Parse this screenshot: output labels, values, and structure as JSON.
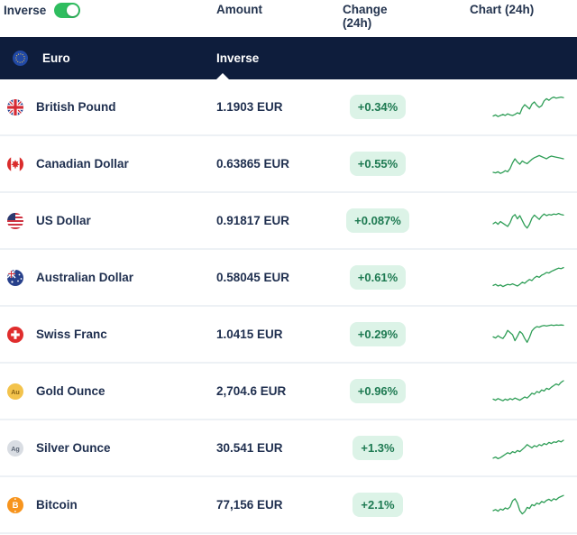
{
  "header": {
    "inverse_label": "Inverse",
    "toggle_on": true,
    "columns": {
      "amount": "Amount",
      "change": "Change (24h)",
      "chart": "Chart (24h)"
    }
  },
  "base": {
    "currency": "Euro",
    "amount_label": "Inverse"
  },
  "colors": {
    "band_navy": "#0e1d3c",
    "text_navy": "#1f2f4f",
    "badge_bg": "#dcf3e7",
    "badge_text": "#1e7a52",
    "toggle_green": "#2fbd5f",
    "spark_line": "#2f9e57",
    "separator": "#edf1f5"
  },
  "rows": [
    {
      "name": "British Pound",
      "flag": "gb-flag-icon",
      "amount": "1.1903 EUR",
      "change": "+0.34%",
      "spark": [
        18,
        22,
        16,
        20,
        24,
        20,
        26,
        22,
        20,
        24,
        30,
        26,
        48,
        60,
        52,
        44,
        62,
        70,
        58,
        50,
        56,
        74,
        82,
        76,
        84,
        88,
        84,
        86,
        88,
        86
      ]
    },
    {
      "name": "Canadian Dollar",
      "flag": "ca-flag-icon",
      "amount": "0.63865 EUR",
      "change": "+0.55%",
      "spark": [
        20,
        18,
        22,
        16,
        20,
        26,
        22,
        34,
        55,
        70,
        58,
        50,
        62,
        56,
        52,
        60,
        68,
        74,
        78,
        82,
        78,
        74,
        70,
        76,
        80,
        78,
        76,
        74,
        72,
        70
      ]
    },
    {
      "name": "US Dollar",
      "flag": "us-flag-icon",
      "amount": "0.91817 EUR",
      "change": "+0.087%",
      "spark": [
        40,
        46,
        38,
        48,
        42,
        36,
        30,
        44,
        66,
        74,
        58,
        70,
        52,
        34,
        24,
        38,
        60,
        72,
        64,
        56,
        68,
        76,
        70,
        74,
        72,
        76,
        74,
        78,
        74,
        72
      ]
    },
    {
      "name": "Australian Dollar",
      "flag": "au-flag-icon",
      "amount": "0.58045 EUR",
      "change": "+0.61%",
      "spark": [
        22,
        26,
        20,
        24,
        18,
        22,
        26,
        24,
        28,
        24,
        20,
        26,
        34,
        30,
        38,
        44,
        40,
        50,
        56,
        52,
        60,
        64,
        70,
        68,
        74,
        78,
        82,
        86,
        84,
        88
      ]
    },
    {
      "name": "Swiss Franc",
      "flag": "ch-flag-icon",
      "amount": "1.0415 EUR",
      "change": "+0.29%",
      "spark": [
        42,
        38,
        46,
        40,
        36,
        48,
        66,
        58,
        50,
        28,
        44,
        62,
        54,
        36,
        22,
        40,
        64,
        74,
        80,
        78,
        82,
        84,
        82,
        84,
        86,
        84,
        86,
        85,
        86,
        85
      ]
    },
    {
      "name": "Gold Ounce",
      "flag": "gold-icon",
      "amount": "2,704.6 EUR",
      "change": "+0.96%",
      "spark": [
        22,
        18,
        24,
        20,
        16,
        22,
        18,
        24,
        20,
        26,
        22,
        18,
        24,
        30,
        26,
        34,
        44,
        40,
        50,
        46,
        56,
        52,
        62,
        58,
        66,
        72,
        78,
        74,
        84,
        90
      ]
    },
    {
      "name": "Silver Ounce",
      "flag": "silver-icon",
      "amount": "30.541 EUR",
      "change": "+1.3%",
      "spark": [
        14,
        18,
        12,
        16,
        22,
        28,
        34,
        30,
        38,
        34,
        42,
        38,
        46,
        54,
        64,
        58,
        52,
        60,
        56,
        64,
        60,
        68,
        64,
        72,
        68,
        74,
        72,
        78,
        74,
        80
      ]
    },
    {
      "name": "Bitcoin",
      "flag": "bitcoin-icon",
      "amount": "77,156 EUR",
      "change": "+2.1%",
      "spark": [
        30,
        34,
        28,
        36,
        32,
        40,
        36,
        44,
        66,
        74,
        58,
        30,
        18,
        26,
        42,
        38,
        52,
        48,
        58,
        54,
        64,
        60,
        68,
        72,
        66,
        74,
        70,
        78,
        82,
        86
      ]
    }
  ]
}
